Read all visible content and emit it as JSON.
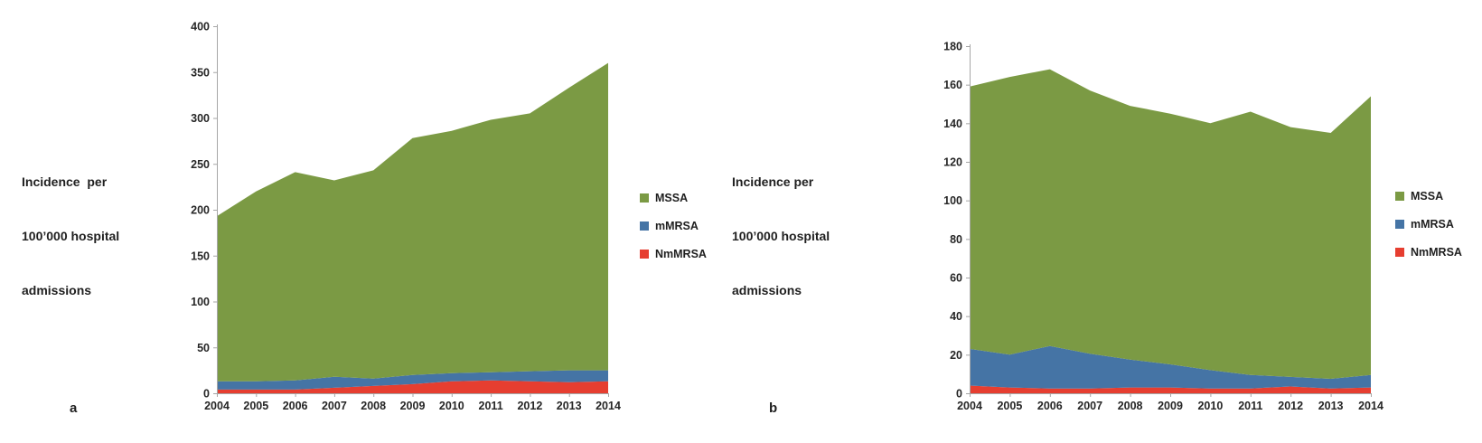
{
  "colors": {
    "background": "#FFFFFF",
    "axis": "#A6A6A6",
    "text": "#262626",
    "mssa_green": "#7B9A44",
    "mmrsa_blue": "#4574A5",
    "nmmrsa_red": "#E63E30"
  },
  "panels": [
    {
      "corner_label": "a",
      "axis_label_lines": [
        "Incidence  per",
        "100’000 hospital",
        "admissions"
      ]
    },
    {
      "corner_label": "b",
      "axis_label_lines": [
        "Incidence per",
        "100’000 hospital",
        "admissions"
      ]
    }
  ],
  "chart_data": [
    {
      "type": "area",
      "stacked": true,
      "title": "",
      "xlabel": "",
      "ylabel": "Incidence per 100’000 hospital admissions",
      "legend_position": "right",
      "grid": false,
      "categories": [
        "2004",
        "2005",
        "2006",
        "2007",
        "2008",
        "2009",
        "2010",
        "2011",
        "2012",
        "2013",
        "2014"
      ],
      "ylim": [
        0,
        400
      ],
      "yticks": [
        0,
        50,
        100,
        150,
        200,
        250,
        300,
        350,
        400
      ],
      "stack_bottom_to_top": [
        "NmMRSA",
        "mMRSA",
        "MSSA"
      ],
      "series": [
        {
          "name": "MSSA",
          "color": "#7B9A44",
          "values": [
            180,
            207,
            227,
            214,
            227,
            258,
            264,
            275,
            281,
            308,
            335
          ]
        },
        {
          "name": "mMRSA",
          "color": "#4574A5",
          "values": [
            9,
            9,
            10,
            12,
            8,
            10,
            9,
            9,
            11,
            13,
            12
          ]
        },
        {
          "name": "NmMRSA",
          "color": "#E63E30",
          "values": [
            4,
            4,
            4,
            6,
            8,
            10,
            13,
            14,
            13,
            12,
            13
          ]
        }
      ],
      "stacked_totals": [
        193,
        220,
        241,
        232,
        243,
        278,
        286,
        298,
        305,
        333,
        360
      ]
    },
    {
      "type": "area",
      "stacked": true,
      "title": "",
      "xlabel": "",
      "ylabel": "Incidence per 100’000 hospital admissions",
      "legend_position": "right",
      "grid": false,
      "categories": [
        "2004",
        "2005",
        "2006",
        "2007",
        "2008",
        "2009",
        "2010",
        "2011",
        "2012",
        "2013",
        "2014"
      ],
      "ylim": [
        0,
        180
      ],
      "yticks": [
        0,
        20,
        40,
        60,
        80,
        100,
        120,
        140,
        160,
        180
      ],
      "stack_bottom_to_top": [
        "NmMRSA",
        "mMRSA",
        "MSSA"
      ],
      "series": [
        {
          "name": "MSSA",
          "color": "#7B9A44",
          "values": [
            136,
            144,
            143.5,
            136.5,
            131.5,
            130,
            128,
            136.5,
            129.5,
            127.5,
            144.5
          ]
        },
        {
          "name": "mMRSA",
          "color": "#4574A5",
          "values": [
            19,
            17,
            22,
            18,
            14.5,
            12,
            9.5,
            7,
            5,
            5,
            6.5
          ]
        },
        {
          "name": "NmMRSA",
          "color": "#E63E30",
          "values": [
            4,
            3,
            2.5,
            2.5,
            3,
            3,
            2.5,
            2.5,
            3.5,
            2.5,
            3
          ]
        }
      ],
      "stacked_totals": [
        159,
        164,
        168,
        157,
        149,
        145,
        140,
        146,
        138,
        135,
        154
      ]
    }
  ]
}
